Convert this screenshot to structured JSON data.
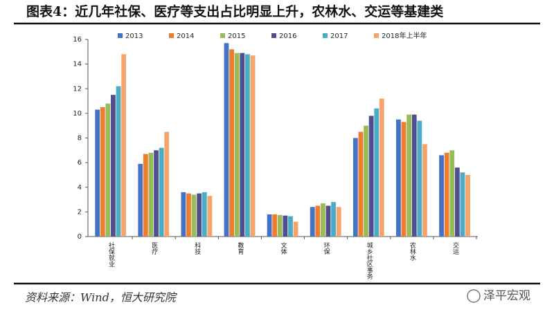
{
  "chart_data": {
    "type": "bar",
    "title": "图表4：近几年社保、医疗等支出占比明显上升，农林水、交运等基建类",
    "source": "资料来源：Wind，恒大研究院",
    "watermark": "泽平宏观",
    "categories": [
      "社保就业",
      "医疗",
      "科技",
      "教育",
      "文体",
      "环保",
      "城乡社区事务",
      "农林水",
      "交运"
    ],
    "series": [
      {
        "name": "2013",
        "color": "#4472c4",
        "values": [
          10.3,
          5.9,
          3.6,
          15.7,
          1.8,
          2.4,
          8.0,
          9.5,
          6.6
        ]
      },
      {
        "name": "2014",
        "color": "#ed7d31",
        "values": [
          10.5,
          6.7,
          3.5,
          15.2,
          1.8,
          2.5,
          8.5,
          9.3,
          6.8
        ]
      },
      {
        "name": "2015",
        "color": "#9bbb59",
        "values": [
          10.8,
          6.8,
          3.4,
          14.9,
          1.75,
          2.7,
          9.0,
          9.9,
          7.0
        ]
      },
      {
        "name": "2016",
        "color": "#4f4f8f",
        "values": [
          11.5,
          7.0,
          3.5,
          14.9,
          1.7,
          2.5,
          9.8,
          9.9,
          5.6
        ]
      },
      {
        "name": "2017",
        "color": "#4bacc6",
        "values": [
          12.2,
          7.2,
          3.6,
          14.8,
          1.65,
          2.8,
          10.4,
          9.4,
          5.2
        ]
      },
      {
        "name": "2018年上半年",
        "color": "#f4a46c",
        "values": [
          14.8,
          8.5,
          3.3,
          14.7,
          1.2,
          2.4,
          11.2,
          7.5,
          5.0
        ]
      }
    ],
    "ylim": [
      0,
      16
    ],
    "yticks": [
      0,
      2,
      4,
      6,
      8,
      10,
      12,
      14,
      16
    ],
    "grid": false,
    "legend": "top"
  }
}
